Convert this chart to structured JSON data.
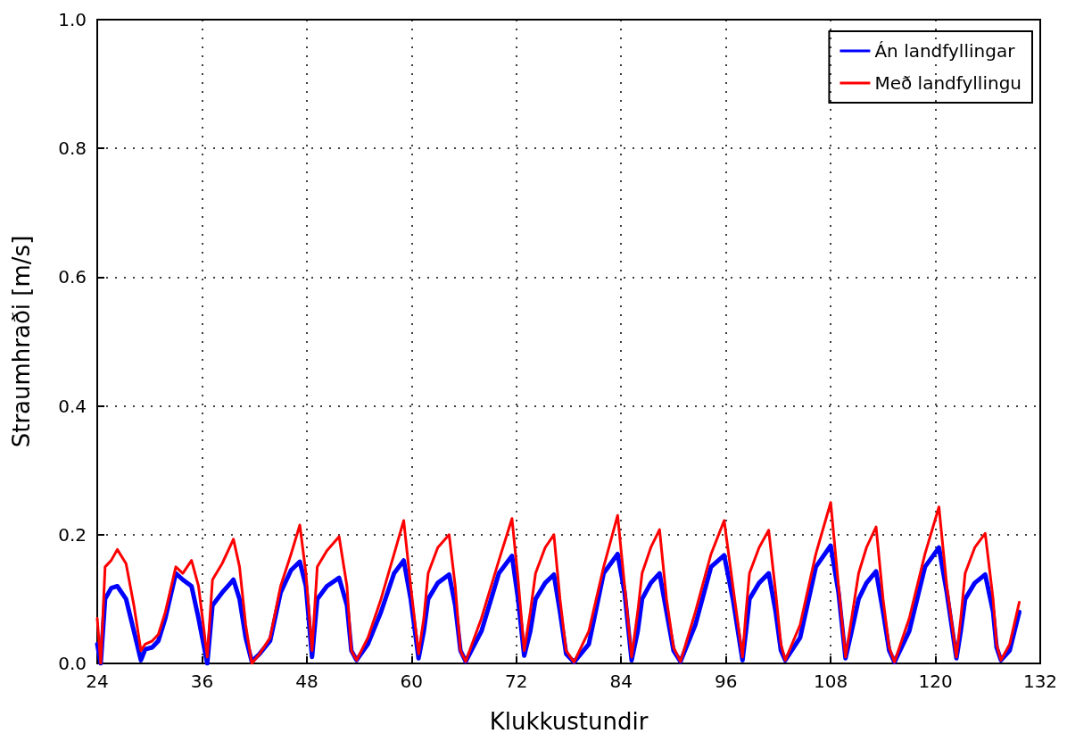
{
  "chart_data": {
    "type": "line",
    "xlabel": "Klukkustundir",
    "ylabel": "Straumhraði [m/s]",
    "x": [
      24,
      24.4,
      24.9,
      25.6,
      26.3,
      27.3,
      28.2,
      29.0,
      29.5,
      30.3,
      31.0,
      31.8,
      33.0,
      33.8,
      34.8,
      35.6,
      36.6,
      37.2,
      38.3,
      39.6,
      40.3,
      41.0,
      41.7,
      42.6,
      43.8,
      45.0,
      46.2,
      47.2,
      47.9,
      48.6,
      49.2,
      50.3,
      51.7,
      52.6,
      53.1,
      53.7,
      55.0,
      56.5,
      58.0,
      59.1,
      59.9,
      60.8,
      61.4,
      61.9,
      63.0,
      64.3,
      65.0,
      65.6,
      66.2,
      68.0,
      70.0,
      71.5,
      72.2,
      72.9,
      73.6,
      74.2,
      75.3,
      76.3,
      77.0,
      77.7,
      78.6,
      80.3,
      82.0,
      83.6,
      84.4,
      85.2,
      85.9,
      86.4,
      87.4,
      88.4,
      89.2,
      90.0,
      90.8,
      92.5,
      94.3,
      95.8,
      96.8,
      97.9,
      98.3,
      98.7,
      99.8,
      100.9,
      101.7,
      102.3,
      102.8,
      104.5,
      106.3,
      108.0,
      108.9,
      109.7,
      110.4,
      111.2,
      112.1,
      113.2,
      114.0,
      114.7,
      115.3,
      117.0,
      118.8,
      120.4,
      121.3,
      122.4,
      122.9,
      123.4,
      124.5,
      125.7,
      126.6,
      127.0,
      127.5,
      128.5,
      129.6
    ],
    "series": [
      {
        "name": "Án landfyllingar",
        "color": "#0000ff",
        "values": [
          0.03,
          0.0,
          0.1,
          0.117,
          0.12,
          0.1,
          0.05,
          0.005,
          0.022,
          0.025,
          0.035,
          0.07,
          0.14,
          0.13,
          0.12,
          0.07,
          0.0,
          0.09,
          0.11,
          0.13,
          0.1,
          0.04,
          0.003,
          0.015,
          0.035,
          0.11,
          0.145,
          0.158,
          0.12,
          0.01,
          0.1,
          0.12,
          0.133,
          0.09,
          0.02,
          0.005,
          0.03,
          0.08,
          0.14,
          0.16,
          0.1,
          0.008,
          0.05,
          0.1,
          0.125,
          0.138,
          0.09,
          0.02,
          0.003,
          0.05,
          0.14,
          0.167,
          0.1,
          0.012,
          0.05,
          0.1,
          0.125,
          0.138,
          0.08,
          0.015,
          0.002,
          0.03,
          0.14,
          0.17,
          0.11,
          0.005,
          0.05,
          0.1,
          0.125,
          0.14,
          0.08,
          0.02,
          0.003,
          0.06,
          0.15,
          0.168,
          0.1,
          0.005,
          0.05,
          0.1,
          0.125,
          0.14,
          0.08,
          0.02,
          0.005,
          0.04,
          0.15,
          0.183,
          0.11,
          0.008,
          0.05,
          0.1,
          0.125,
          0.143,
          0.08,
          0.02,
          0.002,
          0.05,
          0.15,
          0.18,
          0.11,
          0.008,
          0.05,
          0.1,
          0.125,
          0.138,
          0.08,
          0.025,
          0.005,
          0.02,
          0.08
        ]
      },
      {
        "name": "Með landfyllingu",
        "color": "#ff0000",
        "values": [
          0.07,
          0.0,
          0.15,
          0.16,
          0.177,
          0.155,
          0.09,
          0.02,
          0.03,
          0.035,
          0.045,
          0.08,
          0.15,
          0.14,
          0.16,
          0.12,
          0.01,
          0.13,
          0.155,
          0.193,
          0.15,
          0.06,
          0.0,
          0.015,
          0.04,
          0.12,
          0.17,
          0.215,
          0.14,
          0.02,
          0.15,
          0.175,
          0.197,
          0.12,
          0.02,
          0.005,
          0.04,
          0.1,
          0.17,
          0.222,
          0.12,
          0.015,
          0.07,
          0.14,
          0.18,
          0.2,
          0.12,
          0.02,
          0.003,
          0.07,
          0.16,
          0.225,
          0.13,
          0.02,
          0.08,
          0.14,
          0.18,
          0.2,
          0.1,
          0.02,
          0.002,
          0.05,
          0.15,
          0.23,
          0.12,
          0.01,
          0.08,
          0.14,
          0.18,
          0.208,
          0.1,
          0.025,
          0.003,
          0.08,
          0.17,
          0.222,
          0.12,
          0.01,
          0.08,
          0.14,
          0.18,
          0.207,
          0.11,
          0.03,
          0.005,
          0.06,
          0.17,
          0.25,
          0.12,
          0.01,
          0.07,
          0.14,
          0.18,
          0.212,
          0.1,
          0.025,
          0.002,
          0.07,
          0.17,
          0.243,
          0.12,
          0.01,
          0.07,
          0.14,
          0.18,
          0.202,
          0.1,
          0.03,
          0.005,
          0.03,
          0.095
        ]
      }
    ],
    "xlim": [
      24,
      132
    ],
    "xticks": [
      24,
      36,
      48,
      60,
      72,
      84,
      96,
      108,
      120,
      132
    ],
    "ylim": [
      0,
      1
    ],
    "yticks": [
      {
        "value": 0,
        "label": "0.0"
      },
      {
        "value": 0.2,
        "label": "0.2"
      },
      {
        "value": 0.4,
        "label": "0.4"
      },
      {
        "value": 0.6,
        "label": "0.6"
      },
      {
        "value": 0.8,
        "label": "0.8"
      },
      {
        "value": 1,
        "label": "1.0"
      }
    ],
    "grid": true,
    "legend": "top right",
    "marker": "none",
    "line_style": "solid"
  }
}
